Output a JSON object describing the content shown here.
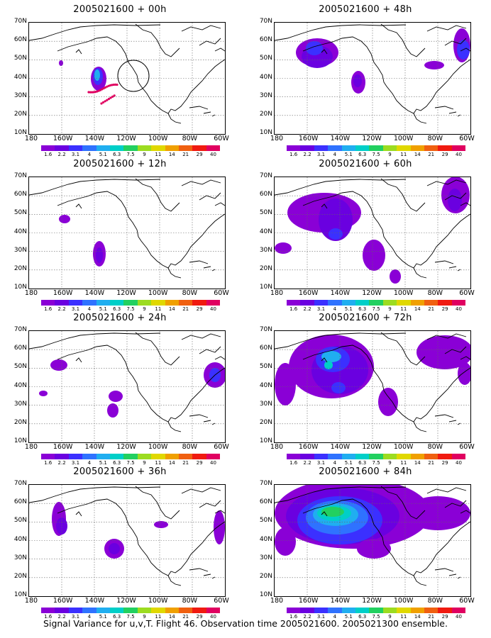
{
  "y_labels": [
    "70N",
    "60N",
    "50N",
    "40N",
    "30N",
    "20N",
    "10N"
  ],
  "x_labels": [
    "180",
    "160W",
    "140W",
    "120W",
    "100W",
    "80W",
    "60W"
  ],
  "colorbar": {
    "colors": [
      "#8a00d6",
      "#6a00e0",
      "#3b30ff",
      "#2f72ff",
      "#20aef0",
      "#00cfc8",
      "#22d060",
      "#9cdc20",
      "#e0d800",
      "#f0a000",
      "#f06010",
      "#f01a10",
      "#e00060"
    ],
    "labels": [
      "1.6",
      "2.2",
      "3.1",
      "4",
      "5.1",
      "6.3",
      "7.5",
      "9",
      "11",
      "14",
      "21",
      "29",
      "40"
    ]
  },
  "panels": [
    {
      "title": "2005021600 + 00h",
      "name": "panel-00h"
    },
    {
      "title": "2005021600 + 48h",
      "name": "panel-48h"
    },
    {
      "title": "2005021600 + 12h",
      "name": "panel-12h"
    },
    {
      "title": "2005021600 + 60h",
      "name": "panel-60h"
    },
    {
      "title": "2005021600 + 24h",
      "name": "panel-24h"
    },
    {
      "title": "2005021600 + 72h",
      "name": "panel-72h"
    },
    {
      "title": "2005021600 + 36h",
      "name": "panel-36h"
    },
    {
      "title": "2005021600 + 84h",
      "name": "panel-84h"
    }
  ],
  "caption": "Signal Variance for u,v,T. Flight 46. Observation time 2005021600. 2005021300 ensemble."
}
